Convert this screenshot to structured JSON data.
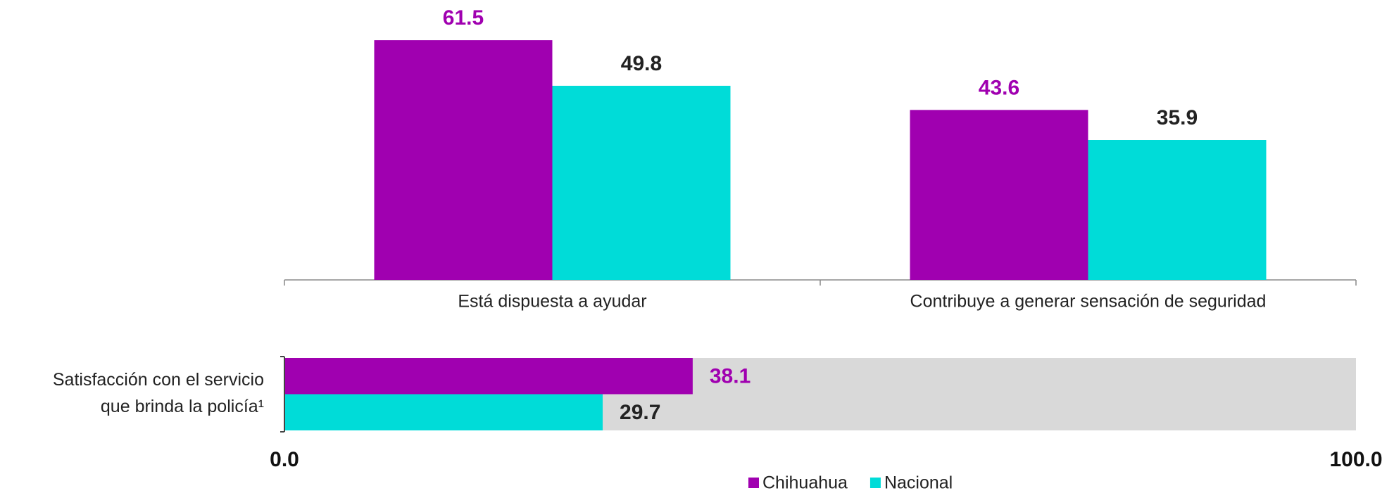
{
  "chart_data": [
    {
      "type": "bar",
      "categories": [
        "Está dispuesta a ayudar",
        "Contribuye a generar sensación de seguridad"
      ],
      "series": [
        {
          "name": "Chihuahua",
          "color": "#a000b0",
          "values": [
            61.5,
            43.6
          ]
        },
        {
          "name": "Nacional",
          "color": "#00dcd8",
          "values": [
            49.8,
            35.9
          ]
        }
      ],
      "ylim": [
        0,
        70
      ]
    },
    {
      "type": "barh",
      "categories": [
        [
          "Satisfacción con el servicio",
          "que brinda la policía¹"
        ]
      ],
      "series": [
        {
          "name": "Chihuahua",
          "color": "#a000b0",
          "values": [
            38.1
          ]
        },
        {
          "name": "Nacional",
          "color": "#00dcd8",
          "values": [
            29.7
          ]
        }
      ],
      "xlim": [
        0,
        100
      ],
      "xticks": [
        {
          "value": 0,
          "label": "0.0"
        },
        {
          "value": 100,
          "label": "100.0"
        }
      ],
      "background": "#d9d9d9",
      "legend": "bottom"
    }
  ]
}
